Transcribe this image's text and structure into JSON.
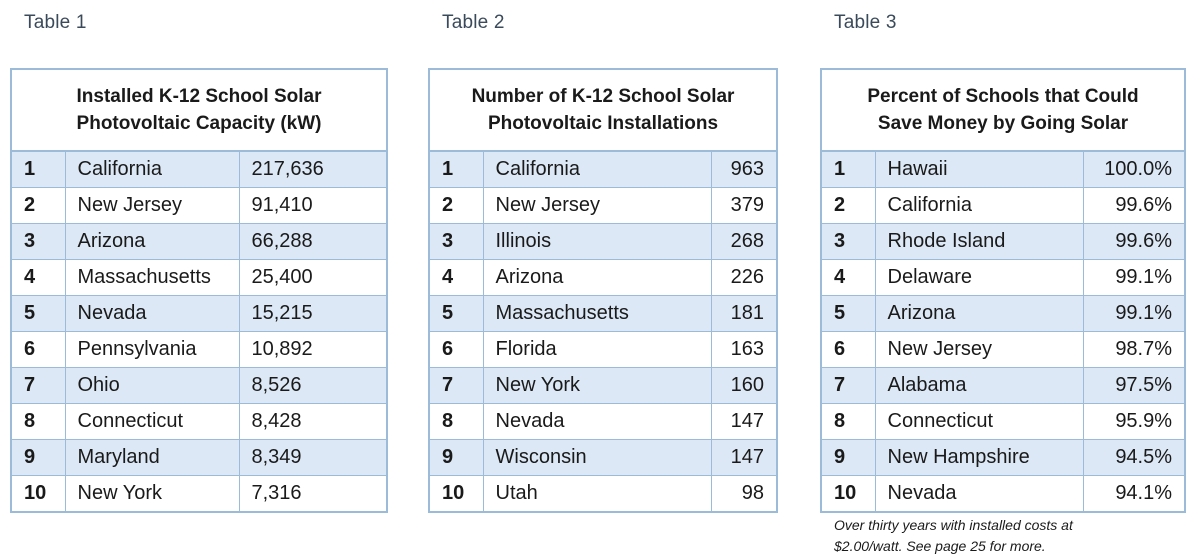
{
  "table1": {
    "caption": "Table 1",
    "title_line1": "Installed K-12 School Solar",
    "title_line2": "Photovoltaic Capacity (kW)",
    "rows": [
      {
        "rank": "1",
        "state": "California",
        "value": "217,636"
      },
      {
        "rank": "2",
        "state": "New Jersey",
        "value": "91,410"
      },
      {
        "rank": "3",
        "state": "Arizona",
        "value": "66,288"
      },
      {
        "rank": "4",
        "state": "Massachusetts",
        "value": "25,400"
      },
      {
        "rank": "5",
        "state": "Nevada",
        "value": "15,215"
      },
      {
        "rank": "6",
        "state": "Pennsylvania",
        "value": "10,892"
      },
      {
        "rank": "7",
        "state": "Ohio",
        "value": "8,526"
      },
      {
        "rank": "8",
        "state": "Connecticut",
        "value": "8,428"
      },
      {
        "rank": "9",
        "state": "Maryland",
        "value": "8,349"
      },
      {
        "rank": "10",
        "state": "New York",
        "value": "7,316"
      }
    ]
  },
  "table2": {
    "caption": "Table 2",
    "title_line1": "Number of K-12 School Solar",
    "title_line2": "Photovoltaic Installations",
    "rows": [
      {
        "rank": "1",
        "state": "California",
        "value": "963"
      },
      {
        "rank": "2",
        "state": "New Jersey",
        "value": "379"
      },
      {
        "rank": "3",
        "state": "Illinois",
        "value": "268"
      },
      {
        "rank": "4",
        "state": "Arizona",
        "value": "226"
      },
      {
        "rank": "5",
        "state": "Massachusetts",
        "value": "181"
      },
      {
        "rank": "6",
        "state": "Florida",
        "value": "163"
      },
      {
        "rank": "7",
        "state": "New York",
        "value": "160"
      },
      {
        "rank": "8",
        "state": "Nevada",
        "value": "147"
      },
      {
        "rank": "9",
        "state": "Wisconsin",
        "value": "147"
      },
      {
        "rank": "10",
        "state": "Utah",
        "value": "98"
      }
    ]
  },
  "table3": {
    "caption": "Table 3",
    "title_line1": "Percent of Schools that Could",
    "title_line2": "Save Money by Going Solar",
    "rows": [
      {
        "rank": "1",
        "state": "Hawaii",
        "value": "100.0%"
      },
      {
        "rank": "2",
        "state": "California",
        "value": "99.6%"
      },
      {
        "rank": "3",
        "state": "Rhode Island",
        "value": "99.6%"
      },
      {
        "rank": "4",
        "state": "Delaware",
        "value": "99.1%"
      },
      {
        "rank": "5",
        "state": "Arizona",
        "value": "99.1%"
      },
      {
        "rank": "6",
        "state": "New Jersey",
        "value": "98.7%"
      },
      {
        "rank": "7",
        "state": "Alabama",
        "value": "97.5%"
      },
      {
        "rank": "8",
        "state": "Connecticut",
        "value": "95.9%"
      },
      {
        "rank": "9",
        "state": "New Hampshire",
        "value": "94.5%"
      },
      {
        "rank": "10",
        "state": "Nevada",
        "value": "94.1%"
      }
    ],
    "note_line1": "Over thirty years with installed costs at",
    "note_line2": "$2.00/watt. See page 25 for more."
  },
  "colors": {
    "border": "#9cbbd8",
    "row_shade": "#dce8f5",
    "caption": "#3a4a5a"
  }
}
